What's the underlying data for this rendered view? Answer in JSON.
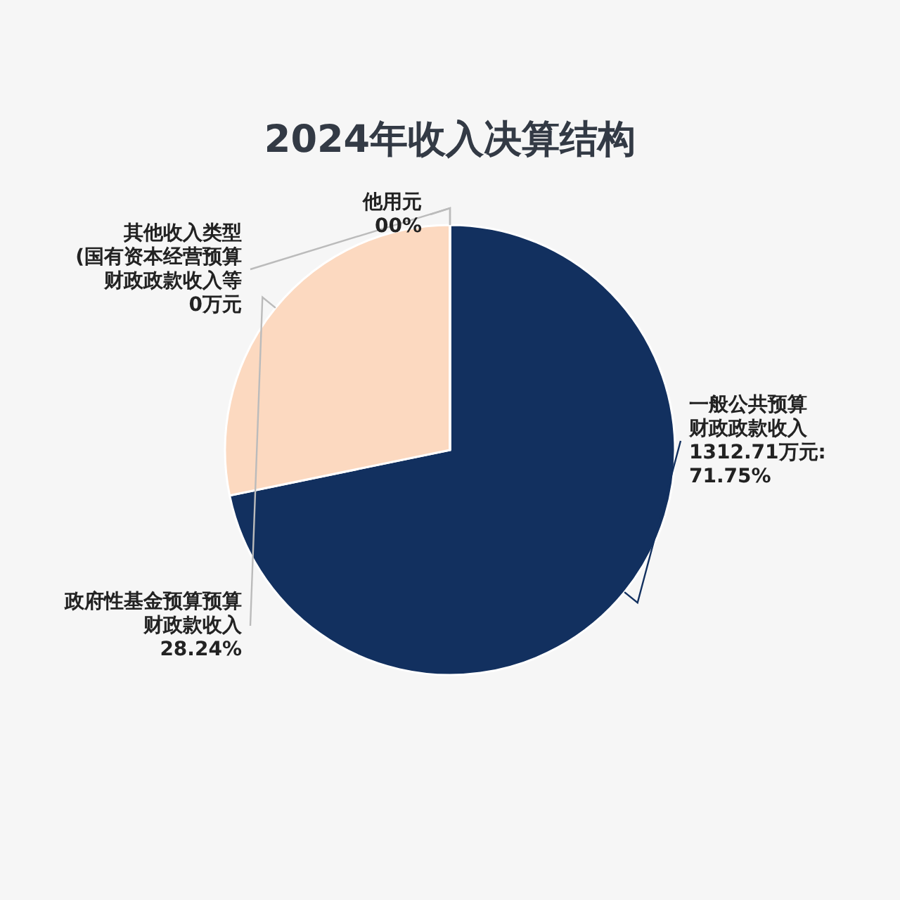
{
  "chart_data": {
    "type": "pie",
    "title": "2024年收入决算结构",
    "categories": [
      "一般公共预算财政政款收入",
      "政府性基金预算预算财政款收入",
      "其他收入类型(国有资本经营预算财政政款收入等",
      "他用元"
    ],
    "values": [
      71.75,
      28.24,
      0,
      0
    ],
    "value_labels": [
      "1312.71万元:\n71.75%",
      "28.24%",
      "0万元",
      "00%"
    ],
    "colors": [
      "#12305f",
      "#fcd9c0",
      "#f9a87a",
      "#d3d3d3"
    ],
    "legend": false
  }
}
